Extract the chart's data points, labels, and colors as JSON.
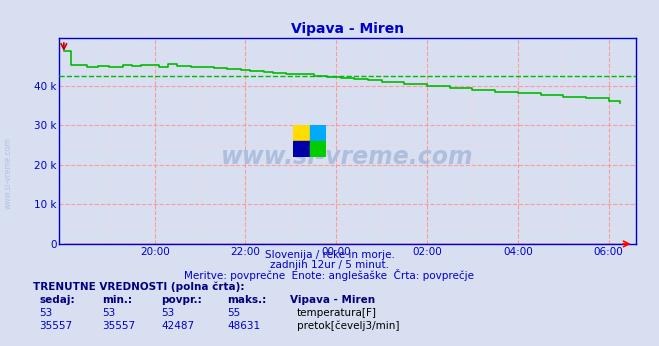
{
  "title": "Vipava - Miren",
  "title_color": "#0000cc",
  "bg_color": "#d8dff0",
  "plot_bg_color": "#d8dff0",
  "grid_major_color": "#ff9999",
  "grid_minor_color": "#ffcccc",
  "axis_color": "#0000cc",
  "ytick_vals": [
    0,
    10000,
    20000,
    30000,
    40000
  ],
  "ytick_labels": [
    "0",
    "10 k",
    "20 k",
    "30 k",
    "40 k"
  ],
  "ylim": [
    0,
    52000
  ],
  "xlim": [
    -7.1,
    5.6
  ],
  "xtick_positions": [
    -5,
    -3,
    -1,
    1,
    3,
    5
  ],
  "xtick_labels": [
    "20:00",
    "22:00",
    "00:00",
    "02:00",
    "04:00",
    "06:00"
  ],
  "flow_color": "#00bb00",
  "temp_color": "#cc0000",
  "avg_flow": 42487,
  "avg_temp": 53,
  "subtitle1": "Slovenija / reke in morje.",
  "subtitle2": "zadnjih 12ur / 5 minut.",
  "subtitle3": "Meritve: povprečne  Enote: anglešaške  Črta: povprečje",
  "footer_bold": "TRENUTNE VREDNOSTI (polna črta):",
  "footer_headers": [
    "sedaj:",
    "min.:",
    "povpr.:",
    "maks.:",
    "Vipava - Miren"
  ],
  "temp_row": [
    "53",
    "53",
    "53",
    "55",
    "temperatura[F]"
  ],
  "flow_row": [
    "35557",
    "35557",
    "42487",
    "48631",
    "pretok[čevelj3/min]"
  ],
  "watermark": "www.si-vreme.com",
  "flow_x": [
    -7.0,
    -6.85,
    -6.5,
    -6.25,
    -6.0,
    -5.7,
    -5.5,
    -5.3,
    -4.9,
    -4.7,
    -4.5,
    -4.2,
    -3.9,
    -3.7,
    -3.4,
    -3.1,
    -2.9,
    -2.6,
    -2.4,
    -2.1,
    -1.8,
    -1.5,
    -1.2,
    -0.9,
    -0.6,
    -0.3,
    0.0,
    0.5,
    1.0,
    1.5,
    2.0,
    2.5,
    3.0,
    3.5,
    4.0,
    4.5,
    5.0,
    5.25
  ],
  "flow_y": [
    48631,
    45200,
    44600,
    45000,
    44700,
    45300,
    44900,
    45200,
    44800,
    45400,
    44900,
    44800,
    44700,
    44500,
    44300,
    44000,
    43800,
    43500,
    43200,
    43000,
    42800,
    42500,
    42200,
    42000,
    41700,
    41400,
    41000,
    40500,
    40000,
    39500,
    39000,
    38500,
    38000,
    37500,
    37200,
    36800,
    36000,
    35557
  ]
}
